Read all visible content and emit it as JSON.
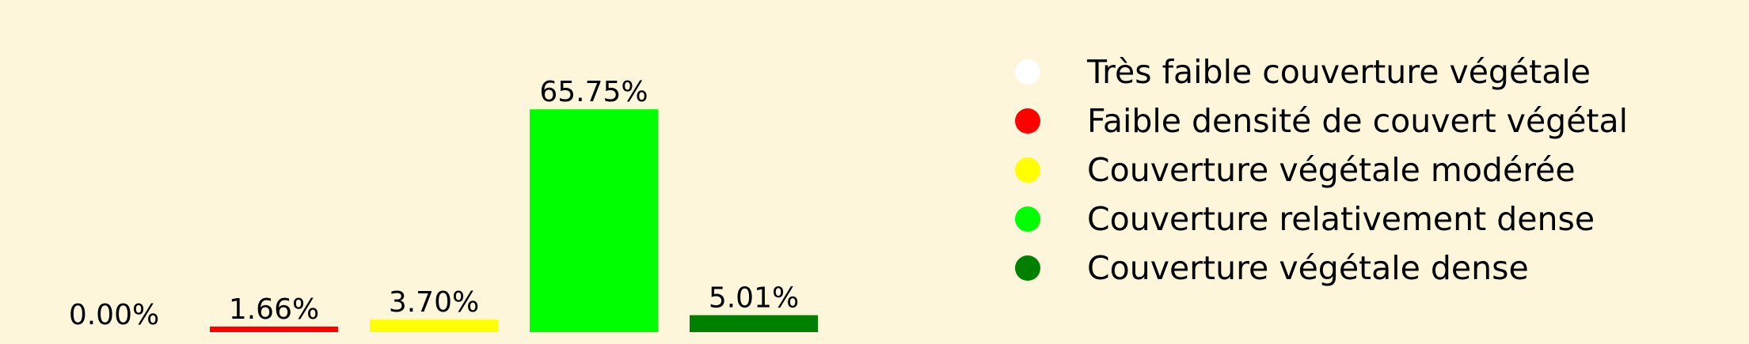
{
  "chart_data": {
    "type": "bar",
    "title": "",
    "xlabel": "",
    "ylabel": "",
    "ylim": [
      0,
      70
    ],
    "grid": false,
    "axes_visible": false,
    "legend_position": "right",
    "categories": [
      "Très faible couverture végétale",
      "Faible densité de couvert végétal",
      "Couverture végétale modérée",
      "Couverture relativement dense",
      "Couverture végétale dense"
    ],
    "values": [
      0.0,
      1.66,
      3.7,
      65.75,
      5.01
    ],
    "value_labels": [
      "0.00%",
      "1.66%",
      "3.70%",
      "65.75%",
      "5.01%"
    ],
    "colors": [
      "#ffffff",
      "#ff0000",
      "#ffff00",
      "#00ff00",
      "#008000"
    ],
    "legend": [
      {
        "label": "Très faible couverture végétale",
        "color": "#ffffff"
      },
      {
        "label": "Faible densité de couvert végétal",
        "color": "#ff0000"
      },
      {
        "label": "Couverture végétale modérée",
        "color": "#ffff00"
      },
      {
        "label": "Couverture relativement dense",
        "color": "#00ff00"
      },
      {
        "label": "Couverture végétale dense",
        "color": "#008000"
      }
    ]
  }
}
